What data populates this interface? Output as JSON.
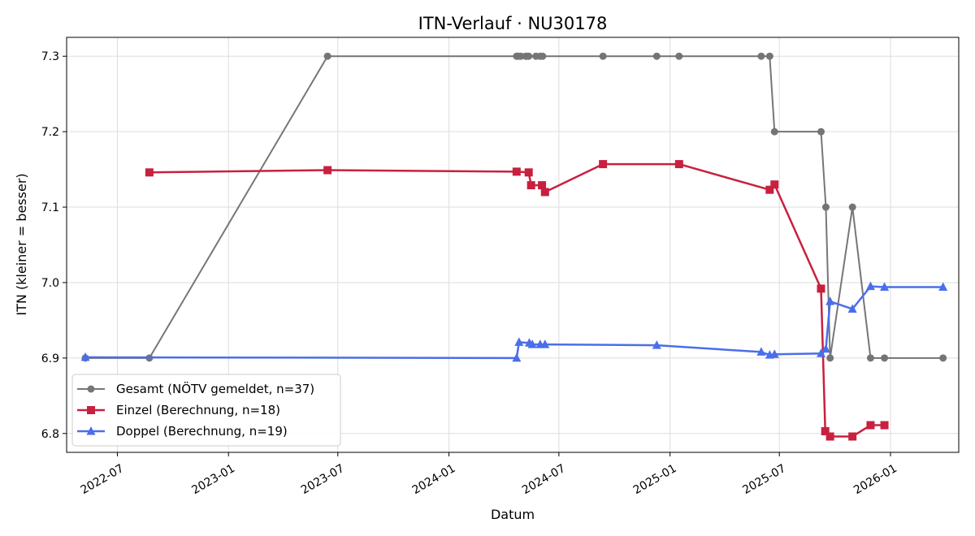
{
  "chart_data": {
    "type": "line",
    "title": "ITN-Verlauf · NU30178",
    "xlabel": "Datum",
    "ylabel": "ITN  (kleiner = besser)",
    "xlim": [
      "2022-04-08",
      "2026-04-24"
    ],
    "ylim": [
      6.775,
      7.325
    ],
    "grid": true,
    "legend_position": "lower-left",
    "x_ticks": [
      {
        "date": "2022-07-01",
        "label": "2022-07"
      },
      {
        "date": "2023-01-01",
        "label": "2023-01"
      },
      {
        "date": "2023-07-01",
        "label": "2023-07"
      },
      {
        "date": "2024-01-01",
        "label": "2024-01"
      },
      {
        "date": "2024-07-01",
        "label": "2024-07"
      },
      {
        "date": "2025-01-01",
        "label": "2025-01"
      },
      {
        "date": "2025-07-01",
        "label": "2025-07"
      },
      {
        "date": "2026-01-01",
        "label": "2026-01"
      }
    ],
    "y_ticks": [
      {
        "value": 6.8,
        "label": "6.8"
      },
      {
        "value": 6.9,
        "label": "6.9"
      },
      {
        "value": 7.0,
        "label": "7.0"
      },
      {
        "value": 7.1,
        "label": "7.1"
      },
      {
        "value": 7.2,
        "label": "7.2"
      },
      {
        "value": 7.3,
        "label": "7.3"
      }
    ],
    "series": [
      {
        "name": "Gesamt (NÖTV gemeldet, n=37)",
        "color": "#555555",
        "marker": "circle",
        "points": [
          {
            "x": "2022-05-09",
            "y": 6.9
          },
          {
            "x": "2022-08-23",
            "y": 6.9
          },
          {
            "x": "2023-06-14",
            "y": 7.3
          },
          {
            "x": "2024-04-22",
            "y": 7.3
          },
          {
            "x": "2024-04-25",
            "y": 7.3
          },
          {
            "x": "2024-04-29",
            "y": 7.3
          },
          {
            "x": "2024-05-07",
            "y": 7.3
          },
          {
            "x": "2024-05-09",
            "y": 7.3
          },
          {
            "x": "2024-05-12",
            "y": 7.3
          },
          {
            "x": "2024-05-24",
            "y": 7.3
          },
          {
            "x": "2024-05-31",
            "y": 7.3
          },
          {
            "x": "2024-06-04",
            "y": 7.3
          },
          {
            "x": "2024-09-12",
            "y": 7.3
          },
          {
            "x": "2024-12-10",
            "y": 7.3
          },
          {
            "x": "2025-01-16",
            "y": 7.3
          },
          {
            "x": "2025-06-01",
            "y": 7.3
          },
          {
            "x": "2025-06-15",
            "y": 7.3
          },
          {
            "x": "2025-06-23",
            "y": 7.2
          },
          {
            "x": "2025-09-08",
            "y": 7.2
          },
          {
            "x": "2025-09-16",
            "y": 7.1
          },
          {
            "x": "2025-09-23",
            "y": 6.9
          },
          {
            "x": "2025-10-30",
            "y": 7.1
          },
          {
            "x": "2025-11-29",
            "y": 6.9
          },
          {
            "x": "2025-12-22",
            "y": 6.9
          },
          {
            "x": "2026-03-29",
            "y": 6.9
          }
        ]
      },
      {
        "name": "Einzel (Berechnung, n=18)",
        "color": "#c8203f",
        "marker": "square",
        "points": [
          {
            "x": "2022-08-23",
            "y": 7.146
          },
          {
            "x": "2023-06-14",
            "y": 7.149
          },
          {
            "x": "2024-04-22",
            "y": 7.147
          },
          {
            "x": "2024-05-12",
            "y": 7.146
          },
          {
            "x": "2024-05-16",
            "y": 7.129
          },
          {
            "x": "2024-06-03",
            "y": 7.129
          },
          {
            "x": "2024-06-08",
            "y": 7.12
          },
          {
            "x": "2024-09-12",
            "y": 7.157
          },
          {
            "x": "2025-01-16",
            "y": 7.157
          },
          {
            "x": "2025-06-15",
            "y": 7.123
          },
          {
            "x": "2025-06-23",
            "y": 7.13
          },
          {
            "x": "2025-09-08",
            "y": 6.992
          },
          {
            "x": "2025-09-15",
            "y": 6.803
          },
          {
            "x": "2025-09-23",
            "y": 6.796
          },
          {
            "x": "2025-10-30",
            "y": 6.796
          },
          {
            "x": "2025-11-29",
            "y": 6.811
          },
          {
            "x": "2025-12-22",
            "y": 6.811
          }
        ]
      },
      {
        "name": "Doppel (Berechnung, n=19)",
        "color": "#4a6eea",
        "marker": "triangle",
        "points": [
          {
            "x": "2022-05-09",
            "y": 6.901
          },
          {
            "x": "2024-04-22",
            "y": 6.9
          },
          {
            "x": "2024-04-26",
            "y": 6.921
          },
          {
            "x": "2024-05-13",
            "y": 6.92
          },
          {
            "x": "2024-05-18",
            "y": 6.918
          },
          {
            "x": "2024-05-31",
            "y": 6.918
          },
          {
            "x": "2024-06-08",
            "y": 6.918
          },
          {
            "x": "2024-12-10",
            "y": 6.917
          },
          {
            "x": "2025-06-01",
            "y": 6.908
          },
          {
            "x": "2025-06-15",
            "y": 6.904
          },
          {
            "x": "2025-06-23",
            "y": 6.905
          },
          {
            "x": "2025-09-08",
            "y": 6.906
          },
          {
            "x": "2025-09-16",
            "y": 6.912
          },
          {
            "x": "2025-09-23",
            "y": 6.975
          },
          {
            "x": "2025-10-30",
            "y": 6.965
          },
          {
            "x": "2025-11-29",
            "y": 6.995
          },
          {
            "x": "2025-12-22",
            "y": 6.994
          },
          {
            "x": "2026-03-29",
            "y": 6.994
          }
        ]
      }
    ]
  }
}
